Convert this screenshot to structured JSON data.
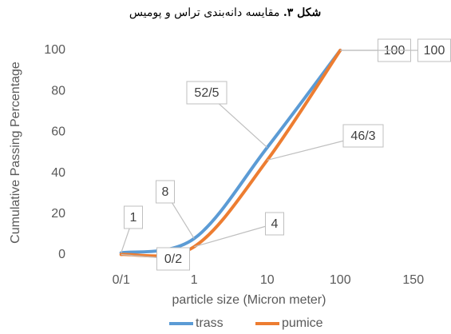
{
  "chart_data": {
    "type": "line",
    "title_label": "شکل ۳.",
    "title": "مقایسه دانه‌بندی تراس و پومیس",
    "y_label": "Cumulative Passing Percentage",
    "x_label": "particle size (Micron meter)",
    "categories": [
      "0/1",
      "1",
      "10",
      "100",
      "150"
    ],
    "series": [
      {
        "name": "trass",
        "color": "#5b9bd5",
        "values": [
          1,
          8,
          52.5,
          100,
          null
        ],
        "value_labels": [
          "1",
          "8",
          "52/5",
          "100",
          null
        ]
      },
      {
        "name": "pumice",
        "color": "#ed7d31",
        "values": [
          0.2,
          4,
          46.3,
          100,
          null
        ],
        "value_labels": [
          "0/2",
          "4",
          "46/3",
          "100",
          null
        ]
      }
    ],
    "ylim": [
      0,
      100
    ],
    "yticks": [
      0,
      20,
      40,
      60,
      80,
      100
    ],
    "grid": false,
    "legend": "bottom"
  }
}
